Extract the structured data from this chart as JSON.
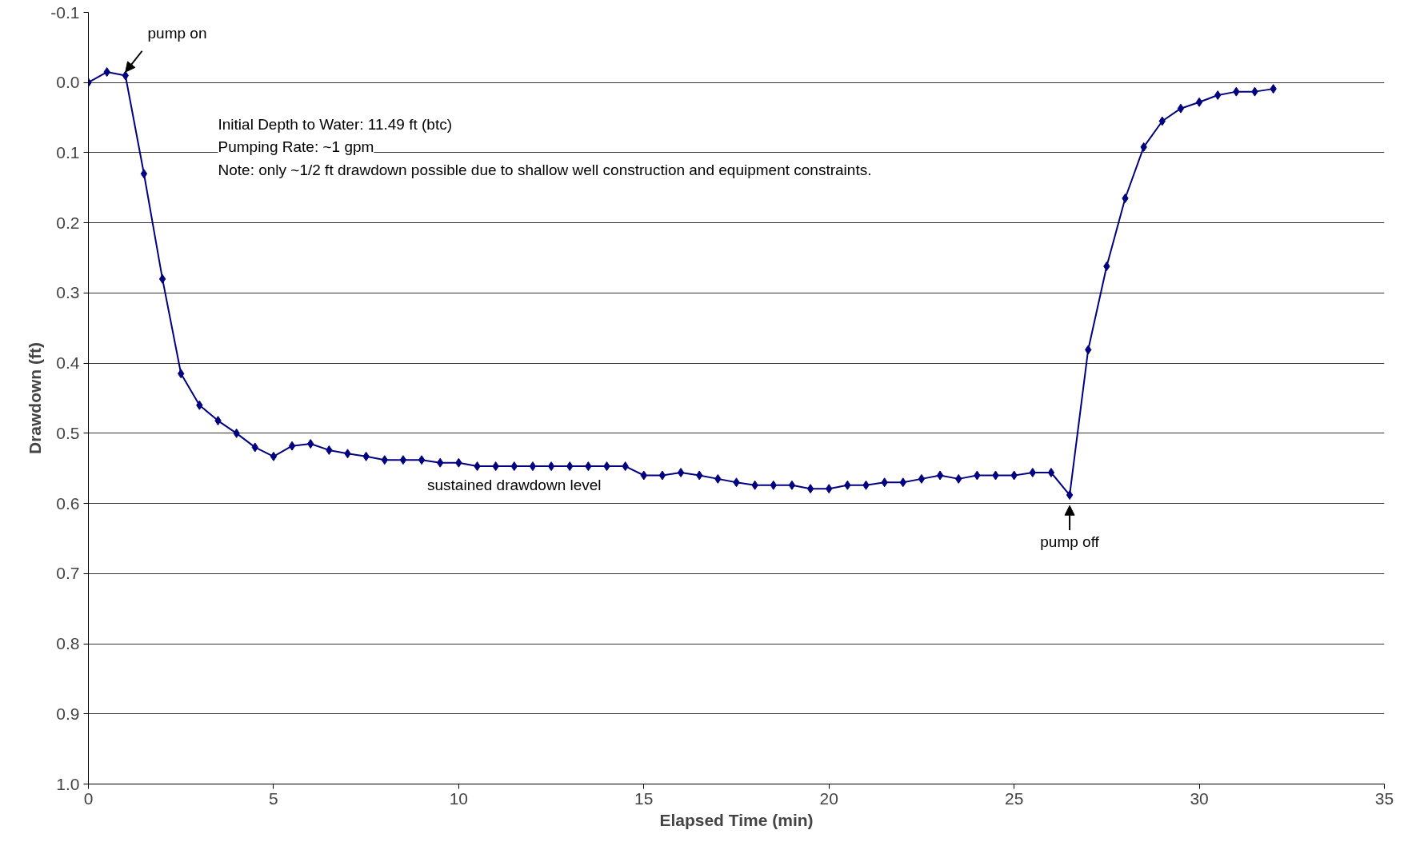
{
  "chart_data": {
    "type": "line",
    "xlabel": "Elapsed Time (min)",
    "ylabel": "Drawdown (ft)",
    "x": [
      0,
      0.5,
      1,
      1.5,
      2,
      2.5,
      3,
      3.5,
      4,
      4.5,
      5,
      5.5,
      6,
      6.5,
      7,
      7.5,
      8,
      8.5,
      9,
      9.5,
      10,
      10.5,
      11,
      11.5,
      12,
      12.5,
      13,
      13.5,
      14,
      14.5,
      15,
      15.5,
      16,
      16.5,
      17,
      17.5,
      18,
      18.5,
      19,
      19.5,
      20,
      20.5,
      21,
      21.5,
      22,
      22.5,
      23,
      23.5,
      24,
      24.5,
      25,
      25.5,
      26,
      26.5,
      27,
      27.5,
      28,
      28.5,
      29,
      29.5,
      30,
      30.5,
      31,
      31.5,
      32
    ],
    "series": [
      {
        "color": "#000080",
        "values": [
          0.0,
          -0.015,
          -0.01,
          0.13,
          0.28,
          0.415,
          0.46,
          0.482,
          0.5,
          0.52,
          0.533,
          0.518,
          0.515,
          0.524,
          0.529,
          0.533,
          0.538,
          0.538,
          0.538,
          0.542,
          0.542,
          0.547,
          0.547,
          0.547,
          0.547,
          0.547,
          0.547,
          0.547,
          0.547,
          0.547,
          0.56,
          0.56,
          0.556,
          0.56,
          0.565,
          0.57,
          0.574,
          0.574,
          0.574,
          0.579,
          0.579,
          0.574,
          0.574,
          0.57,
          0.57,
          0.565,
          0.56,
          0.565,
          0.56,
          0.56,
          0.56,
          0.556,
          0.556,
          0.588,
          0.381,
          0.262,
          0.165,
          0.092,
          0.055,
          0.037,
          0.028,
          0.018,
          0.013,
          0.013,
          0.009
        ]
      }
    ],
    "xlim": [
      0,
      35
    ],
    "xticks": [
      0,
      5,
      10,
      15,
      20,
      25,
      30,
      35
    ],
    "ylim": [
      1.0,
      -0.1
    ],
    "yticks": [
      -0.1,
      {
        "value": 0,
        "label": "0.0"
      },
      0.1,
      0.2,
      0.3,
      0.4,
      0.5,
      0.6,
      0.7,
      0.8,
      0.9,
      {
        "value": 1,
        "label": "1.0"
      }
    ],
    "grid": "y",
    "marker": "diamond",
    "line_style": "solid",
    "annotations": [
      {
        "text": "pump on",
        "x": 1,
        "y": -0.01
      },
      {
        "text": "pump off",
        "x": 26.5,
        "y": 0.588
      },
      {
        "text": "sustained drawdown level",
        "x": 11.5,
        "y": 0.547
      },
      "Initial Depth to Water: 11.49 ft (btc)",
      "Pumping Rate: ~1 gpm",
      "Note: only ~1/2 ft drawdown possible due to shallow well construction and equipment constraints."
    ]
  }
}
